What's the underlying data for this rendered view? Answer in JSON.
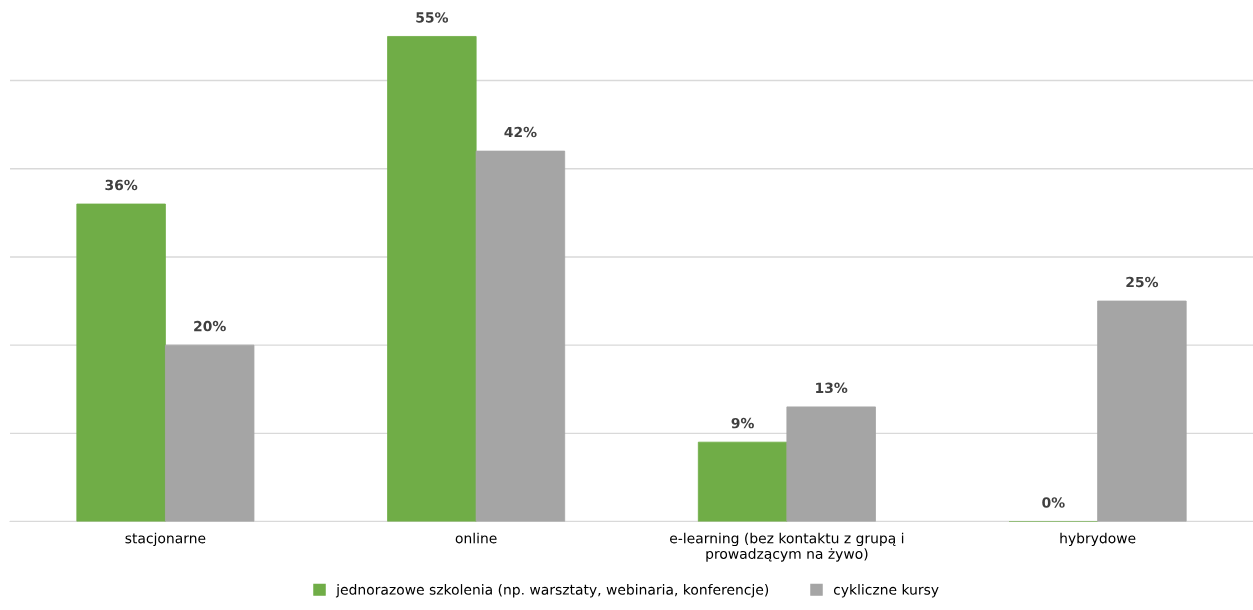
{
  "chart_data": {
    "type": "bar",
    "categories": [
      "stacjonarne",
      "online",
      "e-learning (bez kontaktu z grupą i\nprowadzącym na żywo)",
      "hybrydowe"
    ],
    "series": [
      {
        "name": "jednorazowe szkolenia (np. warsztaty, webinaria, konferencje)",
        "color": "#70ad47",
        "values": [
          36,
          55,
          9,
          0
        ],
        "value_labels": [
          "36%",
          "55%",
          "9%",
          "0%"
        ]
      },
      {
        "name": "cykliczne kursy",
        "color": "#a5a5a5",
        "values": [
          20,
          42,
          13,
          25
        ],
        "value_labels": [
          "20%",
          "42%",
          "13%",
          "25%"
        ]
      }
    ],
    "yticks": [
      {
        "value": 0,
        "label": null
      },
      {
        "value": 10,
        "label": null
      },
      {
        "value": 20,
        "label": null
      },
      {
        "value": 30,
        "label": null
      },
      {
        "value": 40,
        "label": null
      },
      {
        "value": 50,
        "label": null
      }
    ],
    "tick_labels": "x",
    "grid": "y",
    "legend": "bottom"
  }
}
